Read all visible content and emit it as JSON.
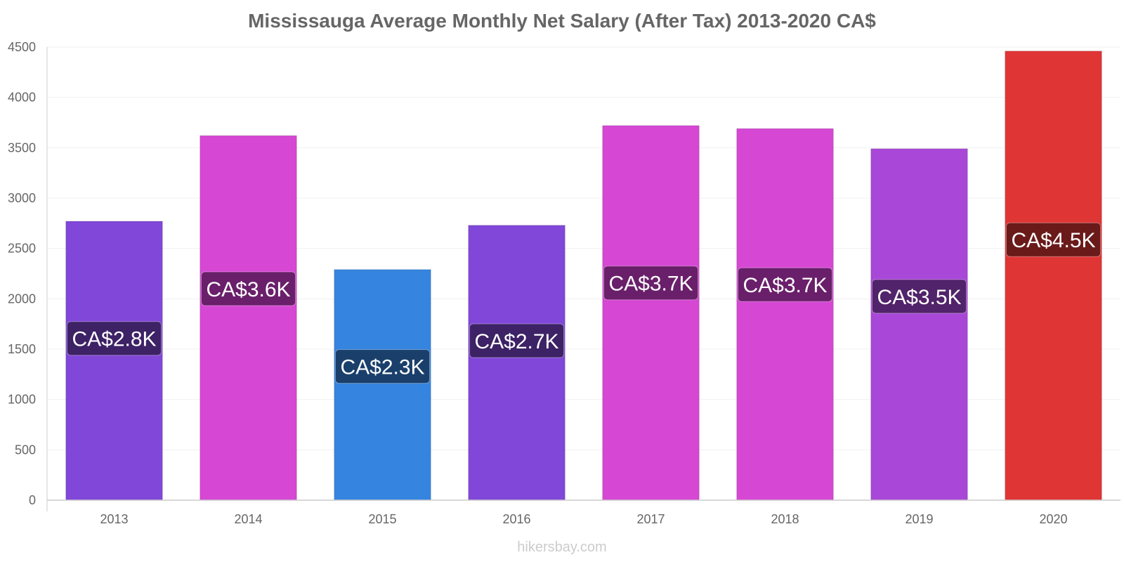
{
  "title": "Mississauga Average Monthly Net Salary (After Tax) 2013-2020 CA$",
  "footer": "hikersbay.com",
  "chart_data": {
    "type": "bar",
    "title": "Mississauga Average Monthly Net Salary (After Tax) 2013-2020 CA$",
    "xlabel": "",
    "ylabel": "",
    "categories": [
      "2013",
      "2014",
      "2015",
      "2016",
      "2017",
      "2018",
      "2019",
      "2020"
    ],
    "values": [
      2770,
      3620,
      2290,
      2730,
      3720,
      3690,
      3490,
      4460
    ],
    "data_labels": [
      "CA$2.8K",
      "CA$3.6K",
      "CA$2.3K",
      "CA$2.7K",
      "CA$3.7K",
      "CA$3.7K",
      "CA$3.5K",
      "CA$4.5K"
    ],
    "bar_colors": [
      "#8047d8",
      "#d647d4",
      "#3584e0",
      "#8047d8",
      "#d647d4",
      "#d647d4",
      "#a847d8",
      "#e03535"
    ],
    "label_colors": [
      "#3d2266",
      "#6a1f6a",
      "#1a3f6b",
      "#3d2266",
      "#6a1f6a",
      "#6a1f6a",
      "#51236a",
      "#6b1a1a"
    ],
    "ylim": [
      0,
      4500
    ],
    "yticks": [
      0,
      500,
      1000,
      1500,
      2000,
      2500,
      3000,
      3500,
      4000,
      4500
    ],
    "grid": true,
    "legend": "none"
  }
}
